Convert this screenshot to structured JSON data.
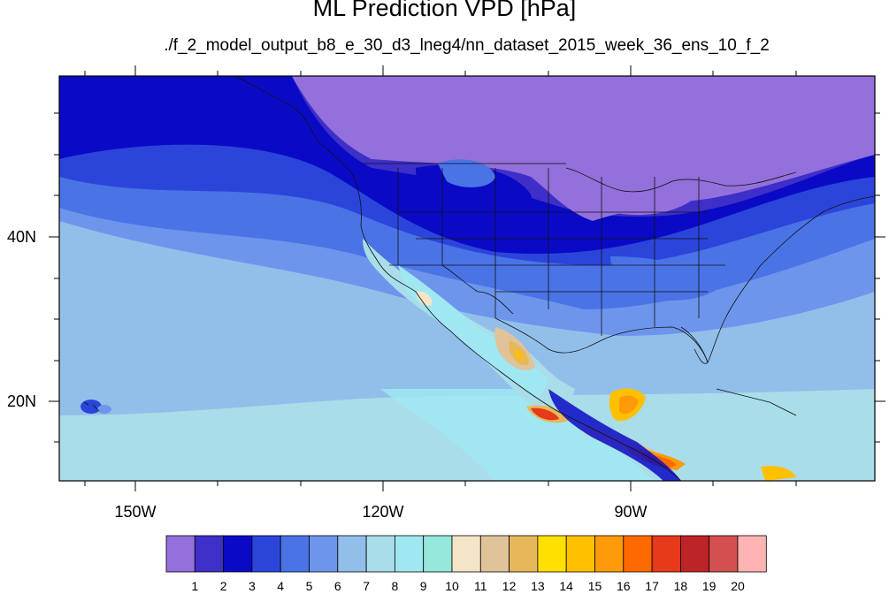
{
  "title": "ML Prediction VPD [hPa]",
  "subtitle": "./f_2_model_output_b8_e_30_d3_lneg4/nn_dataset_2015_week_36_ens_10_f_2",
  "lat_labels": [
    "40N",
    "20N"
  ],
  "lon_labels": [
    "150W",
    "120W",
    "90W"
  ],
  "colorbar": {
    "labels": [
      "1",
      "2",
      "3",
      "4",
      "5",
      "6",
      "7",
      "8",
      "9",
      "10",
      "11",
      "12",
      "13",
      "14",
      "15",
      "16",
      "17",
      "18",
      "19",
      "20"
    ],
    "colors": [
      "#9370DB",
      "#3E2FC9",
      "#0A0AC6",
      "#2B45DB",
      "#4A73E6",
      "#6E95EC",
      "#92BFEA",
      "#A9DDE9",
      "#9FE8F2",
      "#95E8DB",
      "#F3E5C5",
      "#E0C399",
      "#E6B85A",
      "#FFE000",
      "#FFC000",
      "#FF9A0A",
      "#FF6A00",
      "#E63A1A",
      "#BD2428",
      "#D45050",
      "#FFB4B4"
    ]
  }
}
